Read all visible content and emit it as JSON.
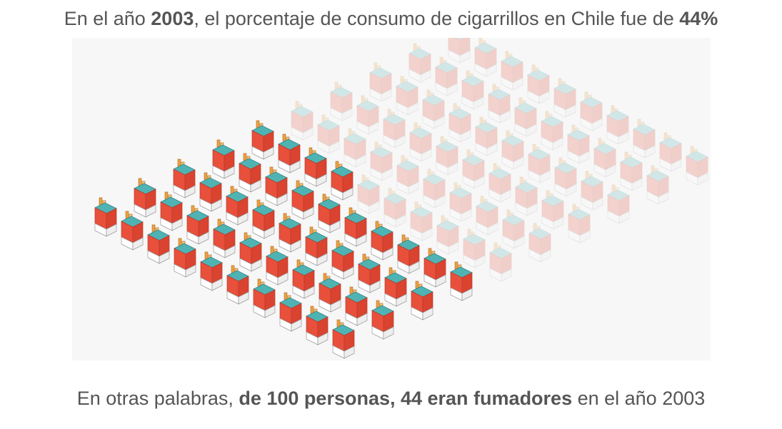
{
  "headline": {
    "pre": "En el año ",
    "year": "2003",
    "mid": ", el porcentaje de consumo de cigarrillos en Chile fue de ",
    "pct": "44%"
  },
  "footer": {
    "pre": "En otras palabras, ",
    "bold": "de 100 personas, 44 eran fumadores",
    "post": " en el año 2003"
  },
  "colors": {
    "smoker": "#e8503c",
    "smoker_dark": "#b83a2a",
    "teal": "#4fb3b3",
    "filter": "#f0a040",
    "faded_opacity": 0.22,
    "panel_bg": "#f7f7f7"
  },
  "chart_data": {
    "type": "isotype",
    "total": 100,
    "highlighted": 44,
    "year": "2003",
    "country": "Chile",
    "unit": "personas"
  }
}
